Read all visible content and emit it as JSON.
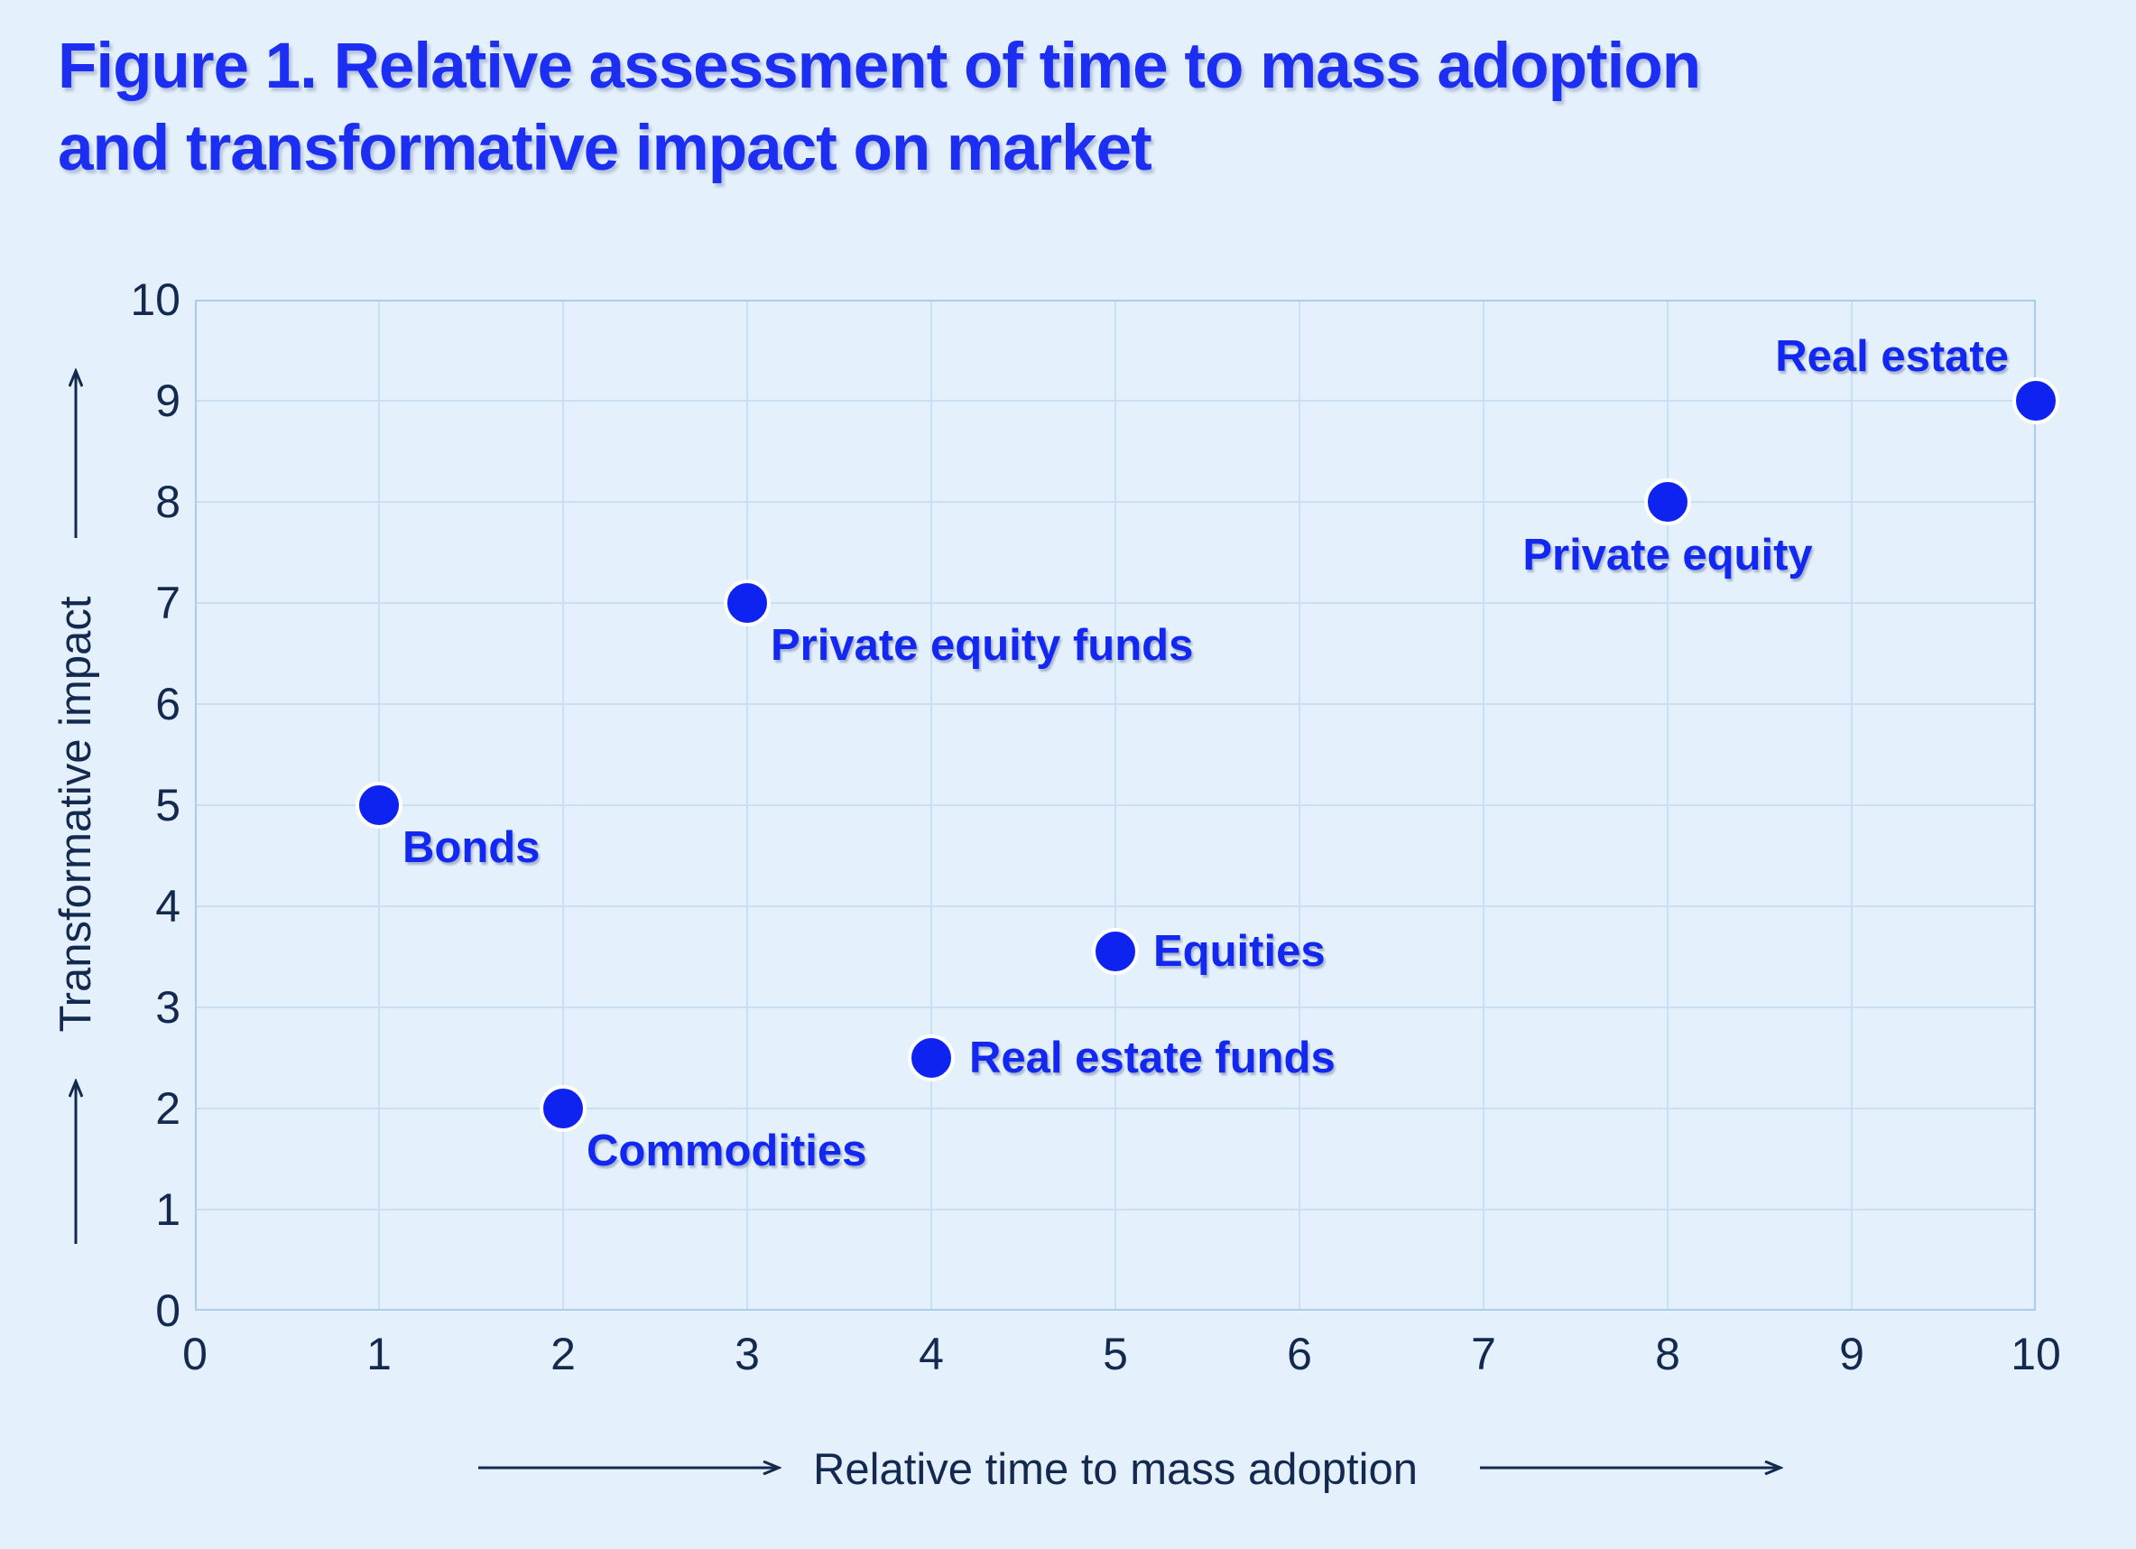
{
  "figure_title": {
    "line1": "Figure 1. Relative assessment of time to mass adoption",
    "line2": "and transformative impact on market"
  },
  "chart_data": {
    "type": "scatter",
    "title": "Figure 1. Relative assessment of time to mass adoption and transformative impact on market",
    "xlabel": "Relative time to mass adoption",
    "ylabel": "Transformative impact",
    "xlim": [
      0,
      10
    ],
    "ylim": [
      0,
      10
    ],
    "x_ticks": [
      0,
      1,
      2,
      3,
      4,
      5,
      6,
      7,
      8,
      9,
      10
    ],
    "y_ticks": [
      0,
      1,
      2,
      3,
      4,
      5,
      6,
      7,
      8,
      9,
      10
    ],
    "grid": true,
    "legend": "none",
    "points": [
      {
        "label": "Bonds",
        "x": 1,
        "y": 5,
        "label_pos": "below-right"
      },
      {
        "label": "Commodities",
        "x": 2,
        "y": 2,
        "label_pos": "below-right"
      },
      {
        "label": "Private equity funds",
        "x": 3,
        "y": 7,
        "label_pos": "below-right"
      },
      {
        "label": "Real estate funds",
        "x": 4,
        "y": 2.5,
        "label_pos": "right"
      },
      {
        "label": "Equities",
        "x": 5,
        "y": 3.55,
        "label_pos": "right"
      },
      {
        "label": "Private equity",
        "x": 8,
        "y": 8,
        "label_pos": "below-center"
      },
      {
        "label": "Real estate",
        "x": 10,
        "y": 9,
        "label_pos": "above-left"
      }
    ]
  },
  "colors": {
    "background": "#E4F1FC",
    "gridline": "#C9E0F4",
    "plot_border": "#ACCDE9",
    "axis_text_navy": "#14294F",
    "dot_blue": "#0F23F0",
    "point_label_blue": "#1228F1",
    "title_blue": "#1B2EF2",
    "dot_halo": "#FFFFFF"
  }
}
